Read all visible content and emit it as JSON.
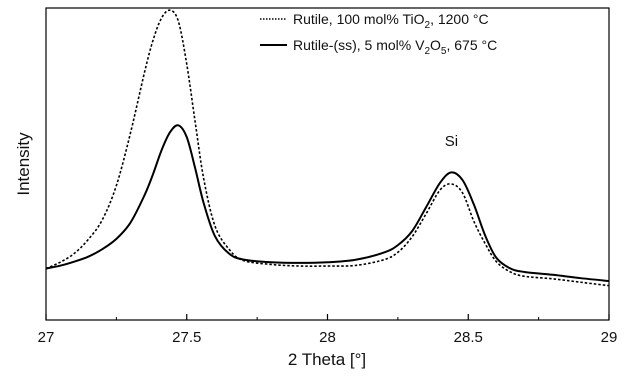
{
  "chart_data": {
    "type": "line",
    "xlabel": "2 Theta [°]",
    "ylabel": "Intensity",
    "xlim": [
      27,
      29
    ],
    "ylim": [
      0,
      100
    ],
    "xticks": [
      "27",
      "27.5",
      "28",
      "28.5",
      "29"
    ],
    "grid": false,
    "legend_position": "top-right",
    "annotations": [
      {
        "text": "Si",
        "x": 28.44,
        "y": 52
      }
    ],
    "series": [
      {
        "name": "Rutile, 100 mol% TiO2, 1200 °C",
        "style": "dotted",
        "color": "#000000",
        "legend": {
          "pre": "Rutile, 100 mol% TiO",
          "sub1": "2",
          "post": ", 1200 °C"
        },
        "x": [
          27.0,
          27.05,
          27.1,
          27.15,
          27.2,
          27.25,
          27.3,
          27.35,
          27.38,
          27.41,
          27.44,
          27.47,
          27.5,
          27.53,
          27.56,
          27.6,
          27.65,
          27.7,
          27.8,
          27.9,
          28.0,
          28.1,
          28.2,
          28.25,
          28.3,
          28.35,
          28.4,
          28.44,
          28.48,
          28.52,
          28.56,
          28.6,
          28.65,
          28.7,
          28.8,
          28.9,
          29.0
        ],
        "y": [
          16.5,
          18.5,
          21.3,
          25.8,
          32.1,
          43.1,
          59.9,
          79.4,
          89.6,
          96.7,
          99.3,
          95.8,
          82.0,
          63.4,
          45.4,
          30.2,
          22.7,
          19.1,
          17.8,
          17.3,
          17.3,
          17.5,
          19.3,
          21.7,
          26.6,
          34.0,
          41.7,
          43.6,
          40.7,
          31.6,
          24.5,
          18.7,
          15.4,
          14.0,
          13.2,
          12.1,
          11.0
        ]
      },
      {
        "name": "Rutile-(ss), 5 mol% V2O5, 675 °C",
        "style": "solid",
        "color": "#000000",
        "legend": {
          "pre": "Rutile-(ss), 5 mol% V",
          "sub1": "2",
          "mid": "O",
          "sub2": "5",
          "post": ", 675 °C"
        },
        "x": [
          27.0,
          27.05,
          27.1,
          27.15,
          27.2,
          27.25,
          27.3,
          27.35,
          27.38,
          27.41,
          27.44,
          27.47,
          27.5,
          27.53,
          27.56,
          27.6,
          27.65,
          27.7,
          27.8,
          27.9,
          28.0,
          28.1,
          28.2,
          28.25,
          28.3,
          28.35,
          28.4,
          28.44,
          28.48,
          28.52,
          28.56,
          28.6,
          28.65,
          28.7,
          28.8,
          28.9,
          29.0
        ],
        "y": [
          16.5,
          17.4,
          18.7,
          20.3,
          22.7,
          26.0,
          31.2,
          40.0,
          46.7,
          54.3,
          60.1,
          62.4,
          58.6,
          48.6,
          37.5,
          26.9,
          21.3,
          19.4,
          18.5,
          18.3,
          18.5,
          19.3,
          21.6,
          24.0,
          28.4,
          36.1,
          44.0,
          47.3,
          44.8,
          37.0,
          27.1,
          19.9,
          16.5,
          15.4,
          14.5,
          13.4,
          12.5
        ]
      }
    ]
  }
}
